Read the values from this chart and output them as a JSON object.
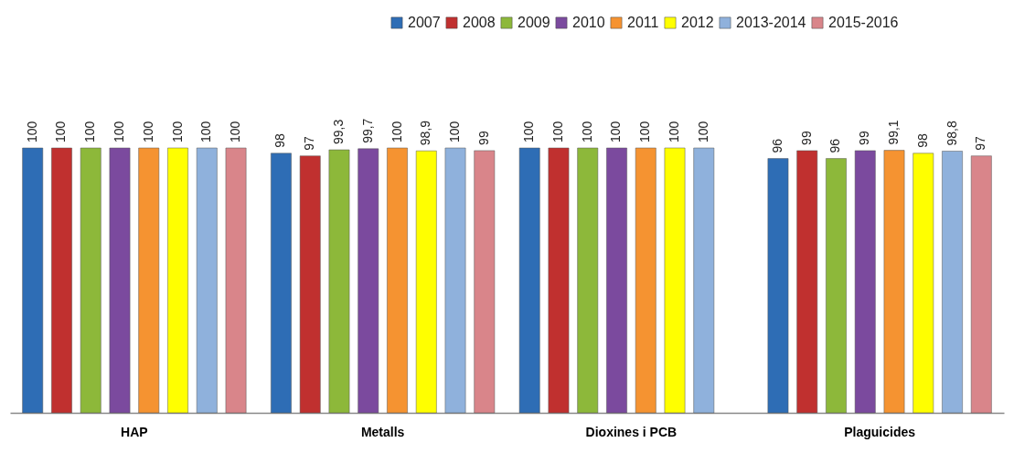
{
  "chart_data": {
    "type": "bar",
    "categories": [
      "HAP",
      "Metalls",
      "Dioxines i PCB",
      "Plaguicides"
    ],
    "series": [
      {
        "name": "2007",
        "color": "#2e6db5",
        "values": [
          100,
          98,
          100,
          96
        ],
        "value_labels": [
          "100",
          "98",
          "100",
          "96"
        ]
      },
      {
        "name": "2008",
        "color": "#c0302f",
        "values": [
          100,
          97,
          100,
          99
        ],
        "value_labels": [
          "100",
          "97",
          "100",
          "99"
        ]
      },
      {
        "name": "2009",
        "color": "#8db83a",
        "values": [
          100,
          99.3,
          100,
          96
        ],
        "value_labels": [
          "100",
          "99,3",
          "100",
          "96"
        ]
      },
      {
        "name": "2010",
        "color": "#7b4a9e",
        "values": [
          100,
          99.7,
          100,
          99
        ],
        "value_labels": [
          "100",
          "99,7",
          "100",
          "99"
        ]
      },
      {
        "name": "2011",
        "color": "#f59331",
        "values": [
          100,
          100,
          100,
          99.1
        ],
        "value_labels": [
          "100",
          "100",
          "100",
          "99,1"
        ]
      },
      {
        "name": "2012",
        "color": "#ffff00",
        "values": [
          100,
          98.9,
          100,
          98
        ],
        "value_labels": [
          "100",
          "98,9",
          "100",
          "98"
        ]
      },
      {
        "name": "2013-2014",
        "color": "#8fb1dc",
        "values": [
          100,
          100,
          100,
          98.8
        ],
        "value_labels": [
          "100",
          "100",
          "100",
          "98,8"
        ]
      },
      {
        "name": "2015-2016",
        "color": "#d9858a",
        "values": [
          100,
          99,
          null,
          97
        ],
        "value_labels": [
          "100",
          "99",
          null,
          "97"
        ]
      }
    ],
    "legend": "top right",
    "grid": false
  }
}
